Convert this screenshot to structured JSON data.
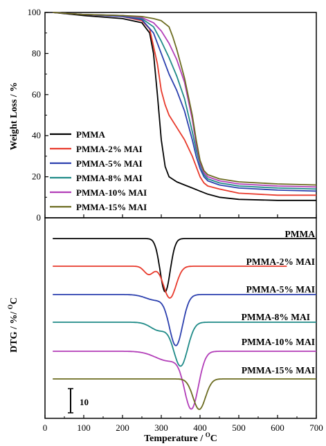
{
  "chart_data": [
    {
      "type": "line",
      "panel": "top",
      "ylabel": "Weight Loss / %",
      "ylim": [
        0,
        100
      ],
      "xlim": [
        0,
        700
      ],
      "y_ticks": [
        "0",
        "20",
        "40",
        "60",
        "80",
        "100"
      ],
      "legend_position": "bottom-left",
      "series": [
        {
          "name": "PMMA",
          "color": "#000000",
          "x": [
            20,
            100,
            200,
            250,
            270,
            280,
            290,
            300,
            310,
            320,
            340,
            360,
            380,
            400,
            420,
            450,
            500,
            600,
            700
          ],
          "y": [
            100,
            98.5,
            97,
            95,
            90,
            80,
            60,
            38,
            25,
            20,
            17.5,
            16,
            14.5,
            13,
            11.5,
            10,
            9,
            8.5,
            8.5
          ]
        },
        {
          "name": "PMMA-2% MAI",
          "color": "#e8392b",
          "x": [
            20,
            100,
            200,
            250,
            270,
            290,
            300,
            310,
            320,
            340,
            360,
            380,
            390,
            400,
            410,
            420,
            450,
            500,
            600,
            700
          ],
          "y": [
            100,
            99,
            98,
            96,
            92,
            75,
            62,
            55,
            50,
            44,
            38,
            30,
            25,
            20,
            17,
            15.5,
            14,
            12,
            11,
            11
          ]
        },
        {
          "name": "PMMA-5% MAI",
          "color": "#2b3fae",
          "x": [
            20,
            100,
            200,
            250,
            280,
            300,
            320,
            340,
            360,
            380,
            390,
            400,
            410,
            420,
            450,
            500,
            600,
            700
          ],
          "y": [
            100,
            99,
            98,
            96.5,
            90,
            80,
            70,
            62,
            52,
            38,
            30,
            24,
            20,
            18,
            16,
            14.5,
            13.5,
            13
          ]
        },
        {
          "name": "PMMA-8% MAI",
          "color": "#1e8a87",
          "x": [
            20,
            100,
            200,
            250,
            280,
            300,
            320,
            340,
            360,
            380,
            390,
            400,
            410,
            420,
            450,
            500,
            600,
            700
          ],
          "y": [
            100,
            99,
            98.5,
            97,
            93,
            86,
            78,
            69,
            58,
            42,
            33,
            26,
            21,
            19,
            17,
            15.5,
            14.5,
            14
          ]
        },
        {
          "name": "PMMA-10% MAI",
          "color": "#b23db8",
          "x": [
            20,
            100,
            200,
            250,
            280,
            300,
            320,
            340,
            360,
            380,
            390,
            400,
            410,
            420,
            450,
            500,
            600,
            700
          ],
          "y": [
            100,
            99,
            98.5,
            97.5,
            95,
            91,
            85,
            77,
            66,
            48,
            36,
            27,
            22,
            20,
            18,
            16.5,
            15.5,
            15
          ]
        },
        {
          "name": "PMMA-15% MAI",
          "color": "#6b6b1f",
          "x": [
            20,
            100,
            200,
            250,
            280,
            300,
            320,
            330,
            340,
            360,
            380,
            390,
            400,
            410,
            420,
            450,
            500,
            600,
            700
          ],
          "y": [
            100,
            99,
            98.5,
            98,
            97,
            96,
            93,
            88,
            82,
            68,
            50,
            38,
            28,
            23,
            21,
            19,
            17.5,
            16.5,
            16
          ]
        }
      ]
    },
    {
      "type": "line",
      "panel": "bottom",
      "xlabel": "Temperature / ",
      "xlabel_sup": "O",
      "xlabel_unit": "C",
      "ylabel": "DTG / %/ ",
      "ylabel_sup": "O",
      "ylabel_unit": "C",
      "xlim": [
        0,
        700
      ],
      "x_ticks": [
        "0",
        "100",
        "200",
        "300",
        "400",
        "500",
        "600",
        "700"
      ],
      "scale_bar_label": "10",
      "series": [
        {
          "name": "PMMA",
          "color": "#000000",
          "baseline": 345,
          "x_start": 20,
          "x_end": 700,
          "peaks": [
            {
              "x": 310,
              "depth": 77,
              "width": 13
            }
          ]
        },
        {
          "name": "PMMA-2% MAI",
          "color": "#e8392b",
          "baseline": 385,
          "x_start": 20,
          "x_end": 625,
          "peaks": [
            {
              "x": 322,
              "depth": 46,
              "width": 16
            },
            {
              "x": 268,
              "depth": 12,
              "width": 12
            }
          ]
        },
        {
          "name": "PMMA-5% MAI",
          "color": "#2b3fae",
          "baseline": 426,
          "x_start": 20,
          "x_end": 700,
          "peaks": [
            {
              "x": 338,
              "depth": 73,
              "width": 17
            },
            {
              "x": 285,
              "depth": 8,
              "width": 25
            }
          ]
        },
        {
          "name": "PMMA-8% MAI",
          "color": "#1e8a87",
          "baseline": 466,
          "x_start": 20,
          "x_end": 700,
          "peaks": [
            {
              "x": 350,
              "depth": 63,
              "width": 18
            },
            {
              "x": 295,
              "depth": 12,
              "width": 22
            }
          ]
        },
        {
          "name": "PMMA-10% MAI",
          "color": "#b23db8",
          "baseline": 508,
          "x_start": 20,
          "x_end": 700,
          "peaks": [
            {
              "x": 378,
              "depth": 80,
              "width": 18
            },
            {
              "x": 320,
              "depth": 14,
              "width": 35
            }
          ]
        },
        {
          "name": "PMMA-15% MAI",
          "color": "#6b6b1f",
          "baseline": 548,
          "x_start": 20,
          "x_end": 700,
          "peaks": [
            {
              "x": 398,
              "depth": 44,
              "width": 16
            }
          ]
        }
      ]
    }
  ]
}
